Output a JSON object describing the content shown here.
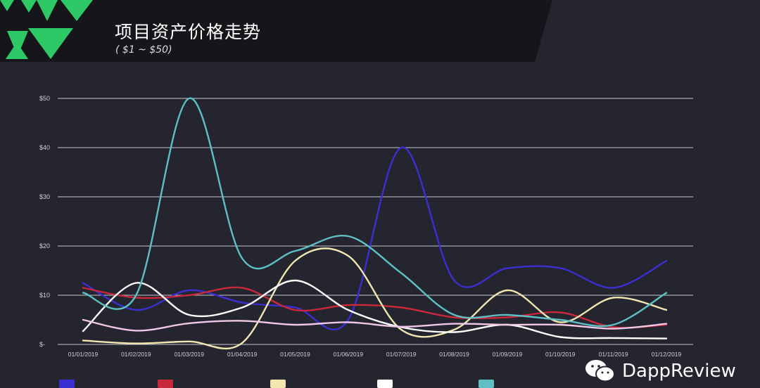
{
  "header": {
    "title": "项目资产价格走势",
    "subtitle": "( $1 ~ $50)"
  },
  "watermark": {
    "text": "DappReview",
    "icon": "wechat-icon"
  },
  "colors": {
    "background": "#24252f",
    "header_band": "#16151a",
    "logo_green": "#2ec866",
    "grid": "#c8c8cc"
  },
  "chart_data": {
    "type": "line",
    "title": "项目资产价格走势",
    "subtitle": "( $1 ~ $50)",
    "xlabel": "",
    "ylabel": "",
    "categories": [
      "01/01/2019",
      "01/02/2019",
      "01/03/2019",
      "01/04/2019",
      "01/05/2019",
      "01/06/2019",
      "01/07/2019",
      "01/08/2019",
      "01/09/2019",
      "01/10/2019",
      "01/11/2019",
      "01/12/2019"
    ],
    "y_ticks": [
      "$-",
      "$10",
      "$20",
      "$30",
      "$40",
      "$50"
    ],
    "y_tick_values": [
      0,
      10,
      20,
      30,
      40,
      50
    ],
    "ylim": [
      0,
      50
    ],
    "grid": true,
    "legend_position": "bottom",
    "series": [
      {
        "color": "#3a2fd0",
        "values": [
          12.5,
          7,
          11,
          8.5,
          7.5,
          5,
          40,
          13,
          15.5,
          15.5,
          11.5,
          17
        ]
      },
      {
        "color": "#c8283a",
        "values": [
          11.5,
          9.5,
          10,
          11.5,
          7,
          8,
          7.5,
          5.5,
          5.5,
          6.5,
          3.5,
          4
        ]
      },
      {
        "color": "#f1e5b0",
        "values": [
          0.8,
          0.2,
          0.6,
          0.3,
          17,
          18,
          3,
          3,
          11,
          4.5,
          9.5,
          7
        ]
      },
      {
        "color": "#ffffff",
        "values": [
          2.7,
          12.5,
          6,
          7.5,
          13,
          7,
          3.5,
          2.5,
          4,
          1.5,
          1.3,
          1.2
        ]
      },
      {
        "color": "#5ec0c4",
        "values": [
          10.5,
          10,
          50,
          17.5,
          19,
          22,
          14.5,
          6,
          6,
          5,
          4,
          10.5
        ]
      },
      {
        "color": "#f0c8e8",
        "values": [
          5,
          2.8,
          4.3,
          4.8,
          4,
          4.5,
          3.6,
          4.2,
          4,
          4,
          3.2,
          4.2
        ]
      }
    ]
  }
}
